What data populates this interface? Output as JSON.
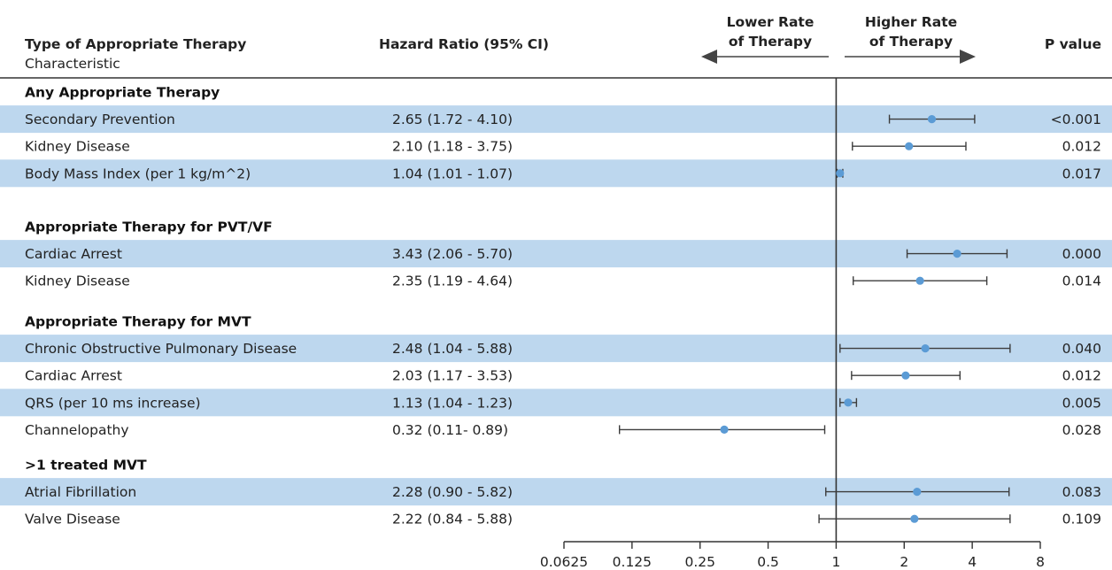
{
  "header": {
    "col1_title": "Type of Appropriate Therapy",
    "col1_subtitle": "Characteristic",
    "col2_title": "Hazard Ratio (95% CI)",
    "left_direction_line1": "Lower Rate",
    "left_direction_line2": "of Therapy",
    "right_direction_line1": "Higher Rate",
    "right_direction_line2": "of Therapy",
    "col4_title": "P value"
  },
  "colors": {
    "band": "#bdd7ee",
    "point": "#5b9bd5",
    "whisker": "#3c3c3c",
    "axis": "#333333",
    "text": "#222222"
  },
  "chart_data": {
    "type": "forest",
    "xscale": "log2",
    "xlim": [
      0.0625,
      8
    ],
    "reference_line": 1,
    "xticks": [
      0.0625,
      0.125,
      0.25,
      0.5,
      1,
      2,
      4,
      8
    ],
    "xtick_labels": [
      "0.0625",
      "0.125",
      "0.25",
      "0.5",
      "1",
      "2",
      "4",
      "8"
    ],
    "groups": [
      {
        "label": "Any Appropriate Therapy",
        "rows": [
          {
            "label": "Secondary Prevention",
            "ci_text": "2.65 (1.72 - 4.10)",
            "hr": 2.65,
            "low": 1.72,
            "high": 4.1,
            "p": "<0.001",
            "shaded": true
          },
          {
            "label": "Kidney Disease",
            "ci_text": "2.10 (1.18 - 3.75)",
            "hr": 2.1,
            "low": 1.18,
            "high": 3.75,
            "p": "0.012",
            "shaded": false
          },
          {
            "label": "Body Mass Index (per 1 kg/m^2)",
            "ci_text": "1.04 (1.01 - 1.07)",
            "hr": 1.04,
            "low": 1.01,
            "high": 1.07,
            "p": "0.017",
            "shaded": true
          }
        ]
      },
      {
        "label": "Appropriate Therapy for PVT/VF",
        "rows": [
          {
            "label": "Cardiac Arrest",
            "ci_text": "3.43 (2.06 - 5.70)",
            "hr": 3.43,
            "low": 2.06,
            "high": 5.7,
            "p": "0.000",
            "shaded": true
          },
          {
            "label": "Kidney Disease",
            "ci_text": "2.35 (1.19 - 4.64)",
            "hr": 2.35,
            "low": 1.19,
            "high": 4.64,
            "p": "0.014",
            "shaded": false
          }
        ]
      },
      {
        "label": "Appropriate Therapy for MVT",
        "rows": [
          {
            "label": "Chronic Obstructive Pulmonary Disease",
            "ci_text": "2.48 (1.04 - 5.88)",
            "hr": 2.48,
            "low": 1.04,
            "high": 5.88,
            "p": "0.040",
            "shaded": true
          },
          {
            "label": "Cardiac Arrest",
            "ci_text": "2.03 (1.17 - 3.53)",
            "hr": 2.03,
            "low": 1.17,
            "high": 3.53,
            "p": "0.012",
            "shaded": false
          },
          {
            "label": "QRS (per 10 ms increase)",
            "ci_text": "1.13 (1.04 - 1.23)",
            "hr": 1.13,
            "low": 1.04,
            "high": 1.23,
            "p": "0.005",
            "shaded": true
          },
          {
            "label": "Channelopathy",
            "ci_text": "0.32 (0.11- 0.89)",
            "hr": 0.32,
            "low": 0.11,
            "high": 0.89,
            "p": "0.028",
            "shaded": false
          }
        ]
      },
      {
        "label": ">1 treated MVT",
        "rows": [
          {
            "label": "Atrial Fibrillation",
            "ci_text": "2.28 (0.90 - 5.82)",
            "hr": 2.28,
            "low": 0.9,
            "high": 5.82,
            "p": "0.083",
            "shaded": true
          },
          {
            "label": "Valve Disease",
            "ci_text": "2.22 (0.84 - 5.88)",
            "hr": 2.22,
            "low": 0.84,
            "high": 5.88,
            "p": "0.109",
            "shaded": false
          }
        ]
      }
    ]
  }
}
